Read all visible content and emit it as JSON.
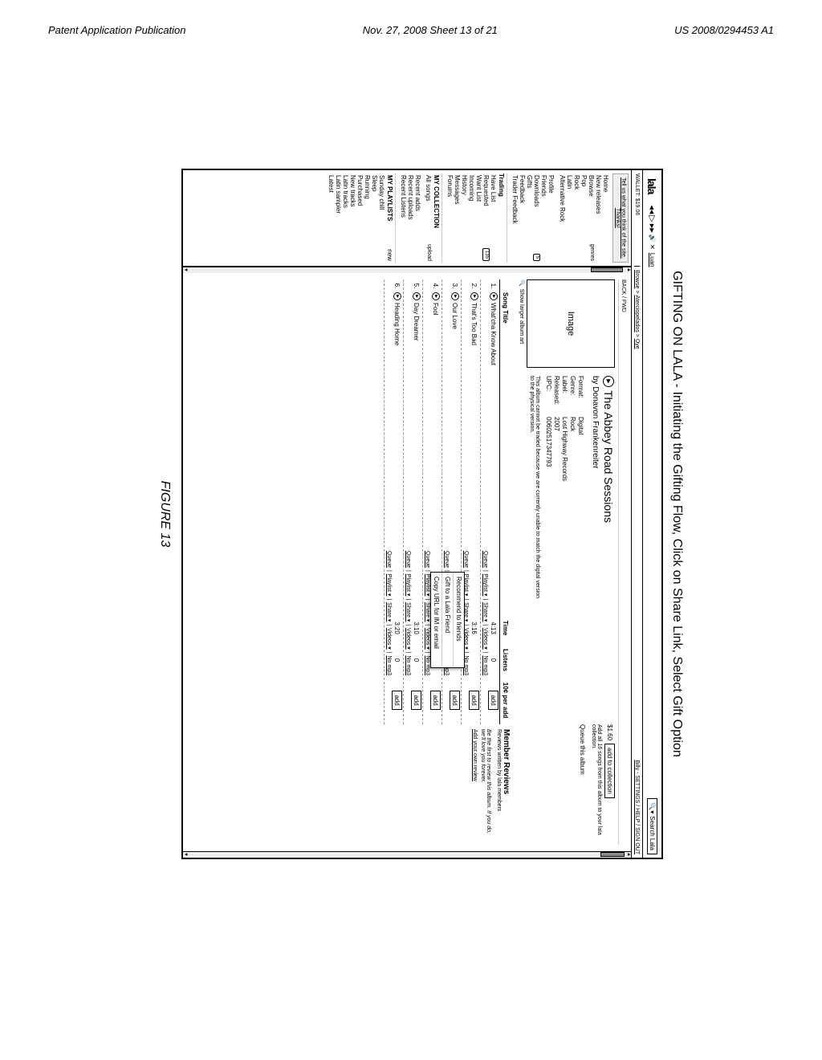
{
  "page_header": {
    "left": "Patent Application Publication",
    "mid": "Nov. 27, 2008  Sheet 13 of 21",
    "right": "US 2008/0294453 A1"
  },
  "figure_title": "GIFTING ON LALA - Initiating the Gifting Flow, Click on Share Link, Select Gift Option",
  "figure_label": "FIGURE 13",
  "logo": "lala",
  "now_playing": "Luan",
  "search_placeholder": "Search Lala",
  "wallet": "WALLET: $19.06",
  "nav_back": "BACK / FWD",
  "crumbs": [
    "Browse",
    "Aterciopelados",
    "Oye"
  ],
  "user_links": "Billy - SETTINGS / HELP / SIGN OUT",
  "sidebar": {
    "feedback": "Tell us what you think of the site. Thanks!",
    "browse": [
      {
        "label": "Home"
      },
      {
        "label": "New releases"
      },
      {
        "label": "Browse",
        "suffix": "genres"
      },
      {
        "label": "Pop"
      },
      {
        "label": "Rock"
      },
      {
        "label": "Latin"
      },
      {
        "label": "Alternative Rock"
      }
    ],
    "social": [
      {
        "label": "Profile"
      },
      {
        "label": "Friends"
      },
      {
        "label": "Downloads",
        "badge": "5"
      },
      {
        "label": "Gifts"
      },
      {
        "label": "Feedback"
      },
      {
        "label": "Trader Feedback"
      }
    ],
    "trading_head": "Trading",
    "trading": [
      {
        "label": "Have List"
      },
      {
        "label": "Requested",
        "badge": "135"
      },
      {
        "label": "Want List"
      },
      {
        "label": "Incoming"
      },
      {
        "label": "History"
      },
      {
        "label": "Messages"
      },
      {
        "label": "Forums"
      }
    ],
    "collection_head": "MY COLLECTION",
    "collection": [
      {
        "label": "All songs",
        "suffix": "upload"
      }
    ],
    "recent": [
      {
        "label": "Recent adds"
      },
      {
        "label": "Recent uploads"
      },
      {
        "label": "Recent Listens"
      }
    ],
    "playlists_head": "MY PLAYLISTS",
    "playlists_suffix": "new",
    "playlists": [
      {
        "label": "Sunday chill"
      },
      {
        "label": "Sleep"
      },
      {
        "label": "Running"
      },
      {
        "label": "Purchased"
      },
      {
        "label": "New tracks"
      },
      {
        "label": "Latin tracks"
      },
      {
        "label": "Latin sampler"
      },
      {
        "label": "Latest"
      }
    ]
  },
  "album": {
    "art_placeholder": "Image",
    "title": "The Abbey Road Sessions",
    "artist": "by Donavon Frankenreiter",
    "meta": [
      {
        "label": "Format:",
        "value": "Digital"
      },
      {
        "label": "Genre:",
        "value": "Rock"
      },
      {
        "label": "Label:",
        "value": "Lost Highway Records"
      },
      {
        "label": "Released:",
        "value": "2007"
      },
      {
        "label": "UPC:",
        "value": "00602517347793"
      }
    ],
    "note": "This album cannot be traded because we are currently unable to match the digital version to the physical version.",
    "show_larger": "Show larger album art",
    "price": "$1.60",
    "add_collection": "add to collection",
    "add_sub": "Add all 16 songs from this album to your lala collection.",
    "queue_album": "Queue this album"
  },
  "track_headers": {
    "title": "Song Title",
    "time": "Time",
    "listens": "Listens",
    "add": "10¢ per add"
  },
  "reviews": {
    "head": "Member Reviews",
    "sub": "Reviews written by lala members",
    "note": "Be the first to review this album. If you do, we'll love you forever.",
    "link": "Add your own review"
  },
  "tracks": [
    {
      "num": "1.",
      "title": "What'cha Know About",
      "time": "4:13",
      "listens": "0"
    },
    {
      "num": "2.",
      "title": "That's Too Bad",
      "time": "3:16",
      "listens": ""
    },
    {
      "num": "3.",
      "title": "Our Love",
      "time": "3:09",
      "listens": "0"
    },
    {
      "num": "4.",
      "title": "Fool",
      "time": "6:15",
      "listens": "0"
    },
    {
      "num": "5.",
      "title": "Day Dreamer",
      "time": "3:10",
      "listens": "0"
    },
    {
      "num": "6.",
      "title": "Heading Home",
      "time": "3:20",
      "listens": "0"
    }
  ],
  "track_action_labels": {
    "queue": "Queue",
    "playlist": "Playlist ▾",
    "share": "Share ▾",
    "videos": "Videos ▾",
    "nomp3": "No mp3",
    "add": "add"
  },
  "share_menu": [
    "Recommend to friends",
    "Gift to a Lala Friend",
    "Copy URL for IM or email"
  ]
}
